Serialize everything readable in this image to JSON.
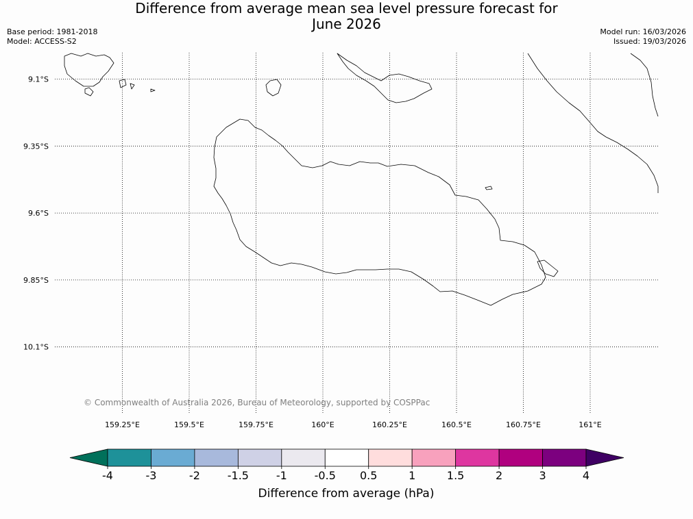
{
  "title": {
    "line1": "Difference from average mean sea level pressure forecast for",
    "line2": "June 2026"
  },
  "meta_left": {
    "base_period": "Base period: 1981-2018",
    "model": "Model: ACCESS-S2"
  },
  "meta_right": {
    "model_run": "Model run: 16/03/2026",
    "issued": "Issued: 19/03/2026"
  },
  "map": {
    "latitudes": [
      {
        "value": -9.1,
        "label": "9.1°S"
      },
      {
        "value": -9.35,
        "label": "9.35°S"
      },
      {
        "value": -9.6,
        "label": "9.6°S"
      },
      {
        "value": -9.85,
        "label": "9.85°S"
      },
      {
        "value": -10.1,
        "label": "10.1°S"
      }
    ],
    "longitudes": [
      {
        "value": 159.25,
        "label": "159.25°E"
      },
      {
        "value": 159.5,
        "label": "159.5°E"
      },
      {
        "value": 159.75,
        "label": "159.75°E"
      },
      {
        "value": 160.0,
        "label": "160°E"
      },
      {
        "value": 160.25,
        "label": "160.25°E"
      },
      {
        "value": 160.5,
        "label": "160.5°E"
      },
      {
        "value": 160.75,
        "label": "160.75°E"
      },
      {
        "value": 161.0,
        "label": "161°E"
      }
    ],
    "copyright": "© Commonwealth of Australia 2026, Bureau of Meteorology, supported by COSPPac"
  },
  "colorbar": {
    "title": "Difference from average (hPa)",
    "ticks": [
      "-4",
      "-3",
      "-2",
      "-1.5",
      "-1",
      "-0.5",
      "0.5",
      "1",
      "1.5",
      "2",
      "3",
      "4"
    ],
    "under_color": "#00705a",
    "over_color": "#3f0063",
    "colors": [
      "#1e9199",
      "#6aabd3",
      "#a8b9dc",
      "#cfd1e6",
      "#ebe9ef",
      "#ffffff",
      "#ffdddd",
      "#f8a1bd",
      "#de36a0",
      "#b0007f",
      "#7c007f"
    ]
  }
}
